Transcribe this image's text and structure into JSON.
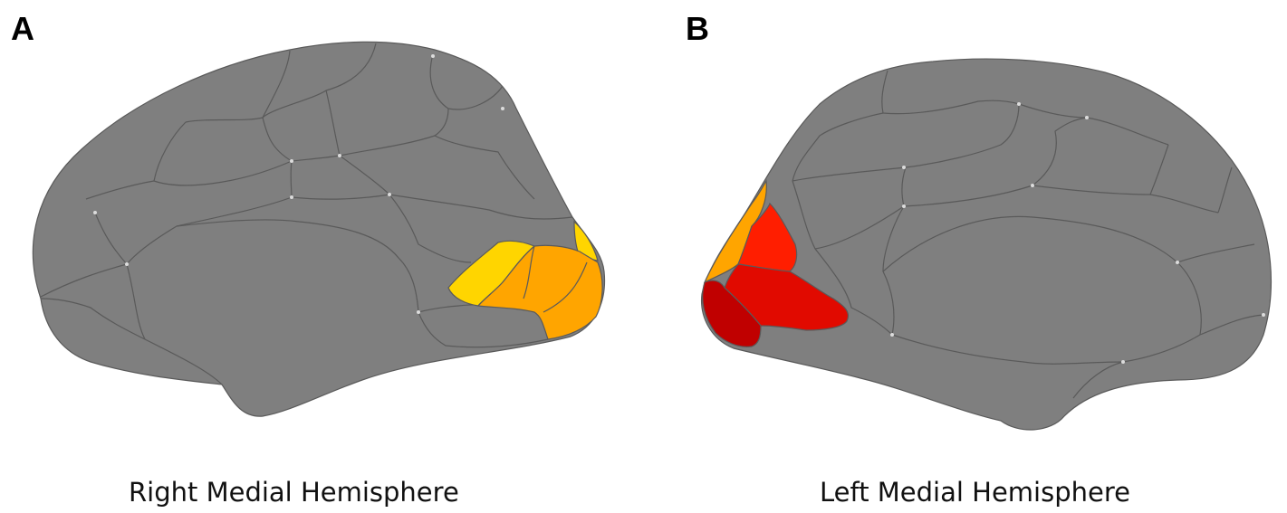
{
  "panels": [
    {
      "letter": "A",
      "caption": "Right Medial Hemisphere"
    },
    {
      "letter": "B",
      "caption": "Left Medial Hemisphere"
    }
  ],
  "colors": {
    "brain_gray": "#7f7f7f",
    "border_gray": "#5a5a5a",
    "yellow": "#ffd500",
    "orange": "#ffa500",
    "red_orange": "#ff1e00",
    "red": "#e10a00",
    "dark_red": "#c00000"
  }
}
